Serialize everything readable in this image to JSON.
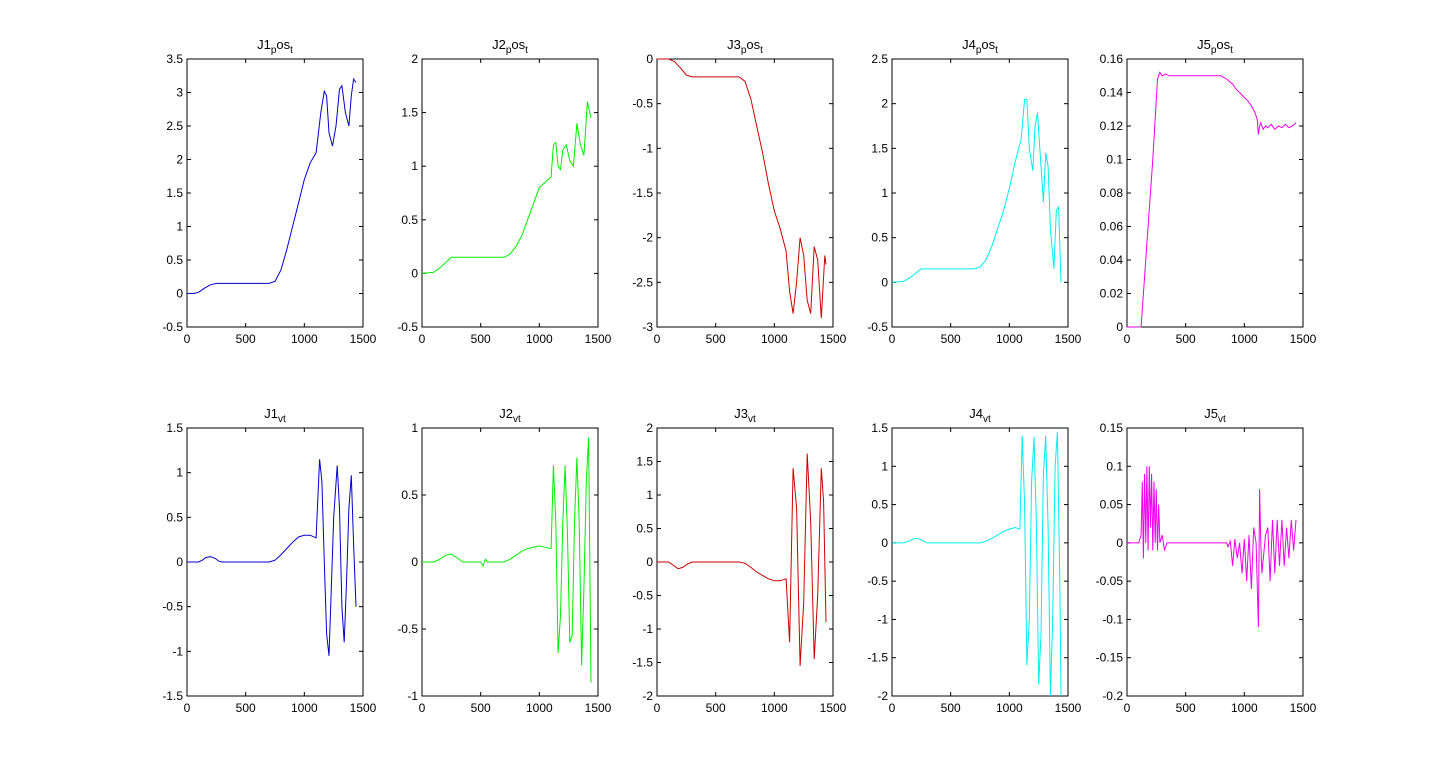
{
  "chart_data": [
    {
      "type": "line",
      "title": "J1",
      "title_sub": "p",
      "title_rest": "os",
      "title_sub2": "t",
      "color": "#0000cc",
      "xlim": [
        0,
        1500
      ],
      "ylim": [
        -0.5,
        3.5
      ],
      "xticks": [
        0,
        500,
        1000,
        1500
      ],
      "yticks": [
        -0.5,
        0,
        0.5,
        1,
        1.5,
        2,
        2.5,
        3,
        3.5
      ],
      "x": [
        0,
        60,
        100,
        150,
        200,
        250,
        300,
        700,
        750,
        800,
        850,
        900,
        950,
        1000,
        1050,
        1100,
        1140,
        1170,
        1190,
        1210,
        1240,
        1270,
        1300,
        1320,
        1350,
        1380,
        1400,
        1420,
        1440
      ],
      "y": [
        0,
        0,
        0.02,
        0.08,
        0.13,
        0.15,
        0.15,
        0.15,
        0.18,
        0.35,
        0.65,
        1.0,
        1.35,
        1.7,
        1.95,
        2.1,
        2.7,
        3.02,
        2.95,
        2.4,
        2.2,
        2.5,
        3.05,
        3.1,
        2.7,
        2.5,
        2.95,
        3.2,
        3.15
      ]
    },
    {
      "type": "line",
      "title": "J2",
      "title_sub": "p",
      "title_rest": "os",
      "title_sub2": "t",
      "color": "#00ee00",
      "xlim": [
        0,
        1500
      ],
      "ylim": [
        -0.5,
        2
      ],
      "xticks": [
        0,
        500,
        1000,
        1500
      ],
      "yticks": [
        -0.5,
        0,
        0.5,
        1,
        1.5,
        2
      ],
      "x": [
        0,
        100,
        150,
        200,
        250,
        300,
        700,
        750,
        800,
        850,
        900,
        950,
        1000,
        1050,
        1100,
        1120,
        1140,
        1160,
        1180,
        1200,
        1230,
        1260,
        1290,
        1320,
        1350,
        1380,
        1410,
        1440
      ],
      "y": [
        0,
        0.01,
        0.05,
        0.1,
        0.15,
        0.15,
        0.15,
        0.18,
        0.25,
        0.35,
        0.5,
        0.65,
        0.8,
        0.85,
        0.9,
        1.2,
        1.22,
        1.0,
        0.97,
        1.15,
        1.2,
        1.05,
        1.0,
        1.4,
        1.2,
        1.1,
        1.6,
        1.45
      ]
    },
    {
      "type": "line",
      "title": "J3",
      "title_sub": "p",
      "title_rest": "os",
      "title_sub2": "t",
      "color": "#cc0000",
      "xlim": [
        0,
        1500
      ],
      "ylim": [
        -3,
        0
      ],
      "xticks": [
        0,
        500,
        1000,
        1500
      ],
      "yticks": [
        -3,
        -2.5,
        -2,
        -1.5,
        -1,
        -0.5,
        0
      ],
      "x": [
        0,
        100,
        150,
        200,
        250,
        300,
        700,
        750,
        800,
        850,
        900,
        950,
        1000,
        1050,
        1100,
        1130,
        1160,
        1190,
        1220,
        1250,
        1280,
        1310,
        1340,
        1370,
        1400,
        1430,
        1440
      ],
      "y": [
        0,
        0,
        -0.03,
        -0.1,
        -0.18,
        -0.2,
        -0.2,
        -0.25,
        -0.45,
        -0.75,
        -1.05,
        -1.4,
        -1.7,
        -1.9,
        -2.15,
        -2.6,
        -2.85,
        -2.5,
        -2.0,
        -2.2,
        -2.7,
        -2.85,
        -2.1,
        -2.25,
        -2.9,
        -2.2,
        -2.3
      ]
    },
    {
      "type": "line",
      "title": "J4",
      "title_sub": "p",
      "title_rest": "os",
      "title_sub2": "t",
      "color": "#00eeee",
      "xlim": [
        0,
        1500
      ],
      "ylim": [
        -0.5,
        2.5
      ],
      "xticks": [
        0,
        500,
        1000,
        1500
      ],
      "yticks": [
        -0.5,
        0,
        0.5,
        1,
        1.5,
        2,
        2.5
      ],
      "x": [
        0,
        100,
        150,
        200,
        250,
        300,
        700,
        750,
        800,
        850,
        900,
        950,
        1000,
        1050,
        1100,
        1130,
        1150,
        1170,
        1200,
        1220,
        1240,
        1260,
        1290,
        1310,
        1330,
        1350,
        1380,
        1400,
        1420,
        1440
      ],
      "y": [
        0,
        0.01,
        0.05,
        0.1,
        0.15,
        0.15,
        0.15,
        0.17,
        0.25,
        0.4,
        0.6,
        0.8,
        1.05,
        1.35,
        1.6,
        2.05,
        2.05,
        1.5,
        1.25,
        1.75,
        1.9,
        1.5,
        0.9,
        1.45,
        1.3,
        0.6,
        0.15,
        0.8,
        0.85,
        0.0
      ]
    },
    {
      "type": "line",
      "title": "J5",
      "title_sub": "p",
      "title_rest": "os",
      "title_sub2": "t",
      "color": "#ee00ee",
      "xlim": [
        0,
        1500
      ],
      "ylim": [
        0,
        0.16
      ],
      "xticks": [
        0,
        500,
        1000,
        1500
      ],
      "yticks": [
        0,
        0.02,
        0.04,
        0.06,
        0.08,
        0.1,
        0.12,
        0.14,
        0.16
      ],
      "x": [
        0,
        100,
        120,
        170,
        220,
        260,
        280,
        300,
        330,
        360,
        400,
        500,
        600,
        700,
        800,
        850,
        900,
        930,
        960,
        1000,
        1030,
        1060,
        1090,
        1110,
        1120,
        1130,
        1140,
        1160,
        1180,
        1200,
        1230,
        1260,
        1290,
        1320,
        1350,
        1380,
        1410,
        1440
      ],
      "y": [
        0,
        0,
        0,
        0.05,
        0.1,
        0.148,
        0.152,
        0.15,
        0.151,
        0.15,
        0.15,
        0.15,
        0.15,
        0.15,
        0.15,
        0.148,
        0.145,
        0.142,
        0.14,
        0.137,
        0.135,
        0.132,
        0.128,
        0.124,
        0.115,
        0.12,
        0.122,
        0.118,
        0.12,
        0.119,
        0.121,
        0.118,
        0.12,
        0.119,
        0.121,
        0.119,
        0.12,
        0.122
      ]
    },
    {
      "type": "line",
      "title": "J1",
      "title_sub": "vt",
      "color": "#0000cc",
      "xlim": [
        0,
        1500
      ],
      "ylim": [
        -1.5,
        1.5
      ],
      "xticks": [
        0,
        500,
        1000,
        1500
      ],
      "yticks": [
        -1.5,
        -1,
        -0.5,
        0,
        0.5,
        1,
        1.5
      ],
      "x": [
        0,
        100,
        130,
        160,
        200,
        240,
        270,
        300,
        700,
        750,
        800,
        850,
        900,
        950,
        1000,
        1050,
        1100,
        1130,
        1150,
        1170,
        1190,
        1210,
        1230,
        1250,
        1280,
        1300,
        1320,
        1340,
        1360,
        1380,
        1400,
        1420,
        1440
      ],
      "y": [
        0,
        0,
        0.02,
        0.05,
        0.06,
        0.04,
        0.01,
        0,
        0,
        0.02,
        0.08,
        0.15,
        0.22,
        0.28,
        0.3,
        0.3,
        0.27,
        1.15,
        0.9,
        0.0,
        -0.8,
        -1.05,
        -0.3,
        0.5,
        1.08,
        0.6,
        -0.5,
        -0.9,
        -0.2,
        0.6,
        0.97,
        0.2,
        -0.5
      ]
    },
    {
      "type": "line",
      "title": "J2",
      "title_sub": "vt",
      "color": "#00ee00",
      "xlim": [
        0,
        1500
      ],
      "ylim": [
        -1,
        1
      ],
      "xticks": [
        0,
        500,
        1000,
        1500
      ],
      "yticks": [
        -1,
        -0.5,
        0,
        0.5,
        1
      ],
      "x": [
        0,
        100,
        150,
        200,
        250,
        300,
        350,
        500,
        520,
        540,
        560,
        700,
        750,
        800,
        850,
        900,
        950,
        1000,
        1050,
        1100,
        1120,
        1140,
        1160,
        1180,
        1200,
        1220,
        1240,
        1260,
        1280,
        1300,
        1320,
        1340,
        1360,
        1380,
        1400,
        1420,
        1440
      ],
      "y": [
        0,
        0,
        0.02,
        0.05,
        0.06,
        0.03,
        0,
        0,
        -0.03,
        0.02,
        0,
        0,
        0.02,
        0.05,
        0.08,
        0.1,
        0.11,
        0.12,
        0.11,
        0.1,
        0.72,
        0.3,
        -0.68,
        -0.4,
        0.3,
        0.72,
        0.2,
        -0.6,
        -0.55,
        0.3,
        0.78,
        0.3,
        -0.77,
        -0.2,
        0.6,
        0.93,
        -0.9
      ]
    },
    {
      "type": "line",
      "title": "J3",
      "title_sub": "vt",
      "color": "#cc0000",
      "xlim": [
        0,
        1500
      ],
      "ylim": [
        -2,
        2
      ],
      "xticks": [
        0,
        500,
        1000,
        1500
      ],
      "yticks": [
        -2,
        -1.5,
        -1,
        -0.5,
        0,
        0.5,
        1,
        1.5,
        2
      ],
      "x": [
        0,
        100,
        140,
        180,
        220,
        260,
        300,
        700,
        750,
        800,
        850,
        900,
        950,
        1000,
        1050,
        1100,
        1130,
        1160,
        1190,
        1220,
        1250,
        1280,
        1310,
        1340,
        1370,
        1400,
        1420,
        1440
      ],
      "y": [
        0,
        0,
        -0.05,
        -0.1,
        -0.08,
        -0.03,
        0,
        0,
        -0.02,
        -0.08,
        -0.15,
        -0.2,
        -0.25,
        -0.28,
        -0.28,
        -0.25,
        -1.2,
        1.4,
        0.8,
        -1.55,
        -0.6,
        1.62,
        0.6,
        -1.45,
        -0.5,
        1.4,
        0.9,
        -0.9
      ]
    },
    {
      "type": "line",
      "title": "J4",
      "title_sub": "vt",
      "color": "#00eeee",
      "xlim": [
        0,
        1500
      ],
      "ylim": [
        -2,
        1.5
      ],
      "xticks": [
        0,
        500,
        1000,
        1500
      ],
      "yticks": [
        -2,
        -1.5,
        -1,
        -0.5,
        0,
        0.5,
        1,
        1.5
      ],
      "x": [
        0,
        100,
        140,
        180,
        220,
        260,
        300,
        750,
        800,
        850,
        900,
        950,
        1000,
        1050,
        1090,
        1110,
        1130,
        1150,
        1170,
        1190,
        1210,
        1230,
        1250,
        1270,
        1290,
        1310,
        1330,
        1350,
        1370,
        1390,
        1410,
        1430,
        1440
      ],
      "y": [
        0,
        0,
        0.02,
        0.05,
        0.06,
        0.03,
        0,
        0,
        0.02,
        0.06,
        0.1,
        0.15,
        0.18,
        0.2,
        0.18,
        1.4,
        0.5,
        -1.6,
        -1.0,
        0.8,
        1.38,
        0.3,
        -1.85,
        -1.2,
        0.9,
        1.4,
        0.2,
        -2.0,
        -1.0,
        1.0,
        1.45,
        -0.5,
        -2.0
      ]
    },
    {
      "type": "line",
      "title": "J5",
      "title_sub": "vt",
      "color": "#ee00ee",
      "xlim": [
        0,
        1500
      ],
      "ylim": [
        -0.2,
        0.15
      ],
      "xticks": [
        0,
        500,
        1000,
        1500
      ],
      "yticks": [
        -0.2,
        -0.15,
        -0.1,
        -0.05,
        0,
        0.05,
        0.1,
        0.15
      ],
      "x": [
        0,
        100,
        120,
        130,
        140,
        150,
        160,
        170,
        180,
        190,
        200,
        210,
        220,
        230,
        240,
        250,
        260,
        270,
        280,
        300,
        320,
        340,
        400,
        500,
        600,
        700,
        800,
        850,
        860,
        880,
        900,
        920,
        940,
        960,
        980,
        1000,
        1020,
        1040,
        1060,
        1080,
        1100,
        1120,
        1130,
        1140,
        1150,
        1180,
        1200,
        1220,
        1240,
        1260,
        1280,
        1300,
        1320,
        1340,
        1360,
        1380,
        1400,
        1420,
        1440
      ],
      "y": [
        0,
        0,
        0.01,
        0.08,
        -0.02,
        0.09,
        0.0,
        0.1,
        -0.01,
        0.1,
        0.02,
        0.09,
        -0.01,
        0.08,
        0.0,
        0.07,
        -0.01,
        0.05,
        0.0,
        0.01,
        -0.01,
        0.0,
        0,
        0,
        0,
        0,
        0,
        0,
        -0.005,
        0.002,
        -0.03,
        0.005,
        -0.02,
        0.0,
        -0.04,
        0.005,
        -0.05,
        0.01,
        -0.06,
        0.02,
        0.0,
        -0.11,
        0.07,
        0.0,
        -0.04,
        0.01,
        0.02,
        -0.05,
        0.03,
        -0.04,
        0.03,
        -0.03,
        0.03,
        -0.03,
        0.02,
        -0.02,
        0.03,
        -0.01,
        0.03
      ]
    }
  ]
}
